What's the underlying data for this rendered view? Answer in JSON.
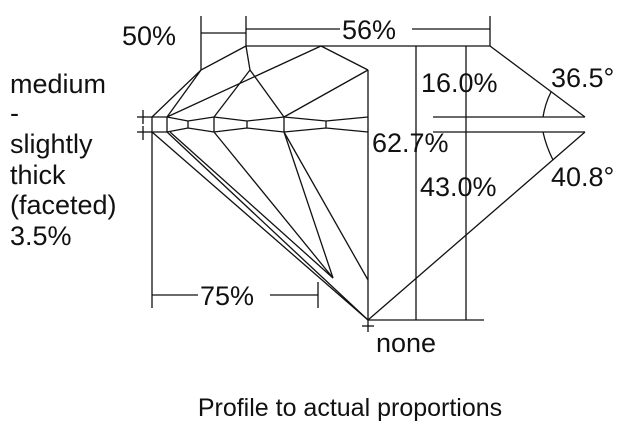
{
  "labels": {
    "crown_height_ratio": "50%",
    "table_size": "56%",
    "crown_height": "16.0%",
    "crown_angle": "36.5°",
    "total_depth": "62.7%",
    "pavilion_depth": "43.0%",
    "pavilion_angle": "40.8°",
    "lower_half_length": "75%",
    "culet": "none",
    "girdle": [
      "medium",
      "-",
      "slightly",
      "thick",
      "(faceted)",
      "3.5%"
    ]
  },
  "caption": "Profile to actual proportions"
}
